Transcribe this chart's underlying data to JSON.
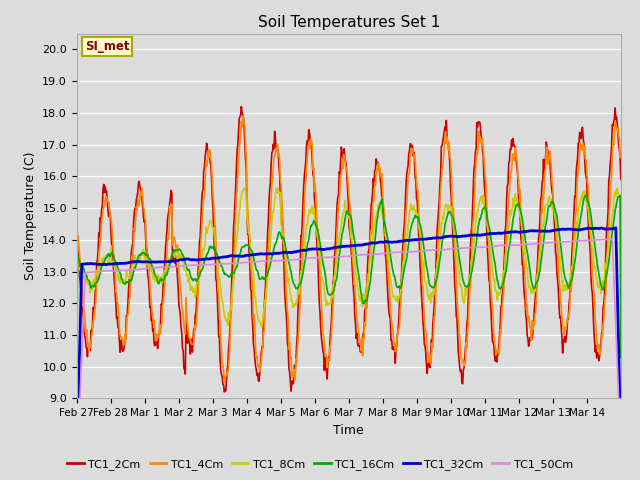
{
  "title": "Soil Temperatures Set 1",
  "xlabel": "Time",
  "ylabel": "Soil Temperature (C)",
  "ylim": [
    9.0,
    20.5
  ],
  "yticks": [
    9.0,
    10.0,
    11.0,
    12.0,
    13.0,
    14.0,
    15.0,
    16.0,
    17.0,
    18.0,
    19.0,
    20.0
  ],
  "xtick_labels": [
    "Feb 27",
    "Feb 28",
    "Mar 1",
    "Mar 2",
    "Mar 3",
    "Mar 4",
    "Mar 5",
    "Mar 6",
    "Mar 7",
    "Mar 8",
    "Mar 9",
    "Mar 10",
    "Mar 11",
    "Mar 12",
    "Mar 13",
    "Mar 14"
  ],
  "n_days": 16,
  "bg_color": "#dcdcdc",
  "annotation_text": "SI_met",
  "annotation_bg": "#ffffcc",
  "annotation_border": "#aaaa00",
  "annotation_text_color": "#880000",
  "series": {
    "TC1_2Cm": {
      "color": "#cc0000",
      "lw": 1.2
    },
    "TC1_4Cm": {
      "color": "#ff8800",
      "lw": 1.2
    },
    "TC1_8Cm": {
      "color": "#cccc00",
      "lw": 1.2
    },
    "TC1_16Cm": {
      "color": "#00aa00",
      "lw": 1.2
    },
    "TC1_32Cm": {
      "color": "#0000cc",
      "lw": 2.0
    },
    "TC1_50Cm": {
      "color": "#dd88dd",
      "lw": 1.2
    }
  },
  "legend_colors": [
    "#cc0000",
    "#ff8800",
    "#cccc00",
    "#00aa00",
    "#0000cc",
    "#dd88dd"
  ],
  "legend_labels": [
    "TC1_2Cm",
    "TC1_4Cm",
    "TC1_8Cm",
    "TC1_16Cm",
    "TC1_32Cm",
    "TC1_50Cm"
  ]
}
